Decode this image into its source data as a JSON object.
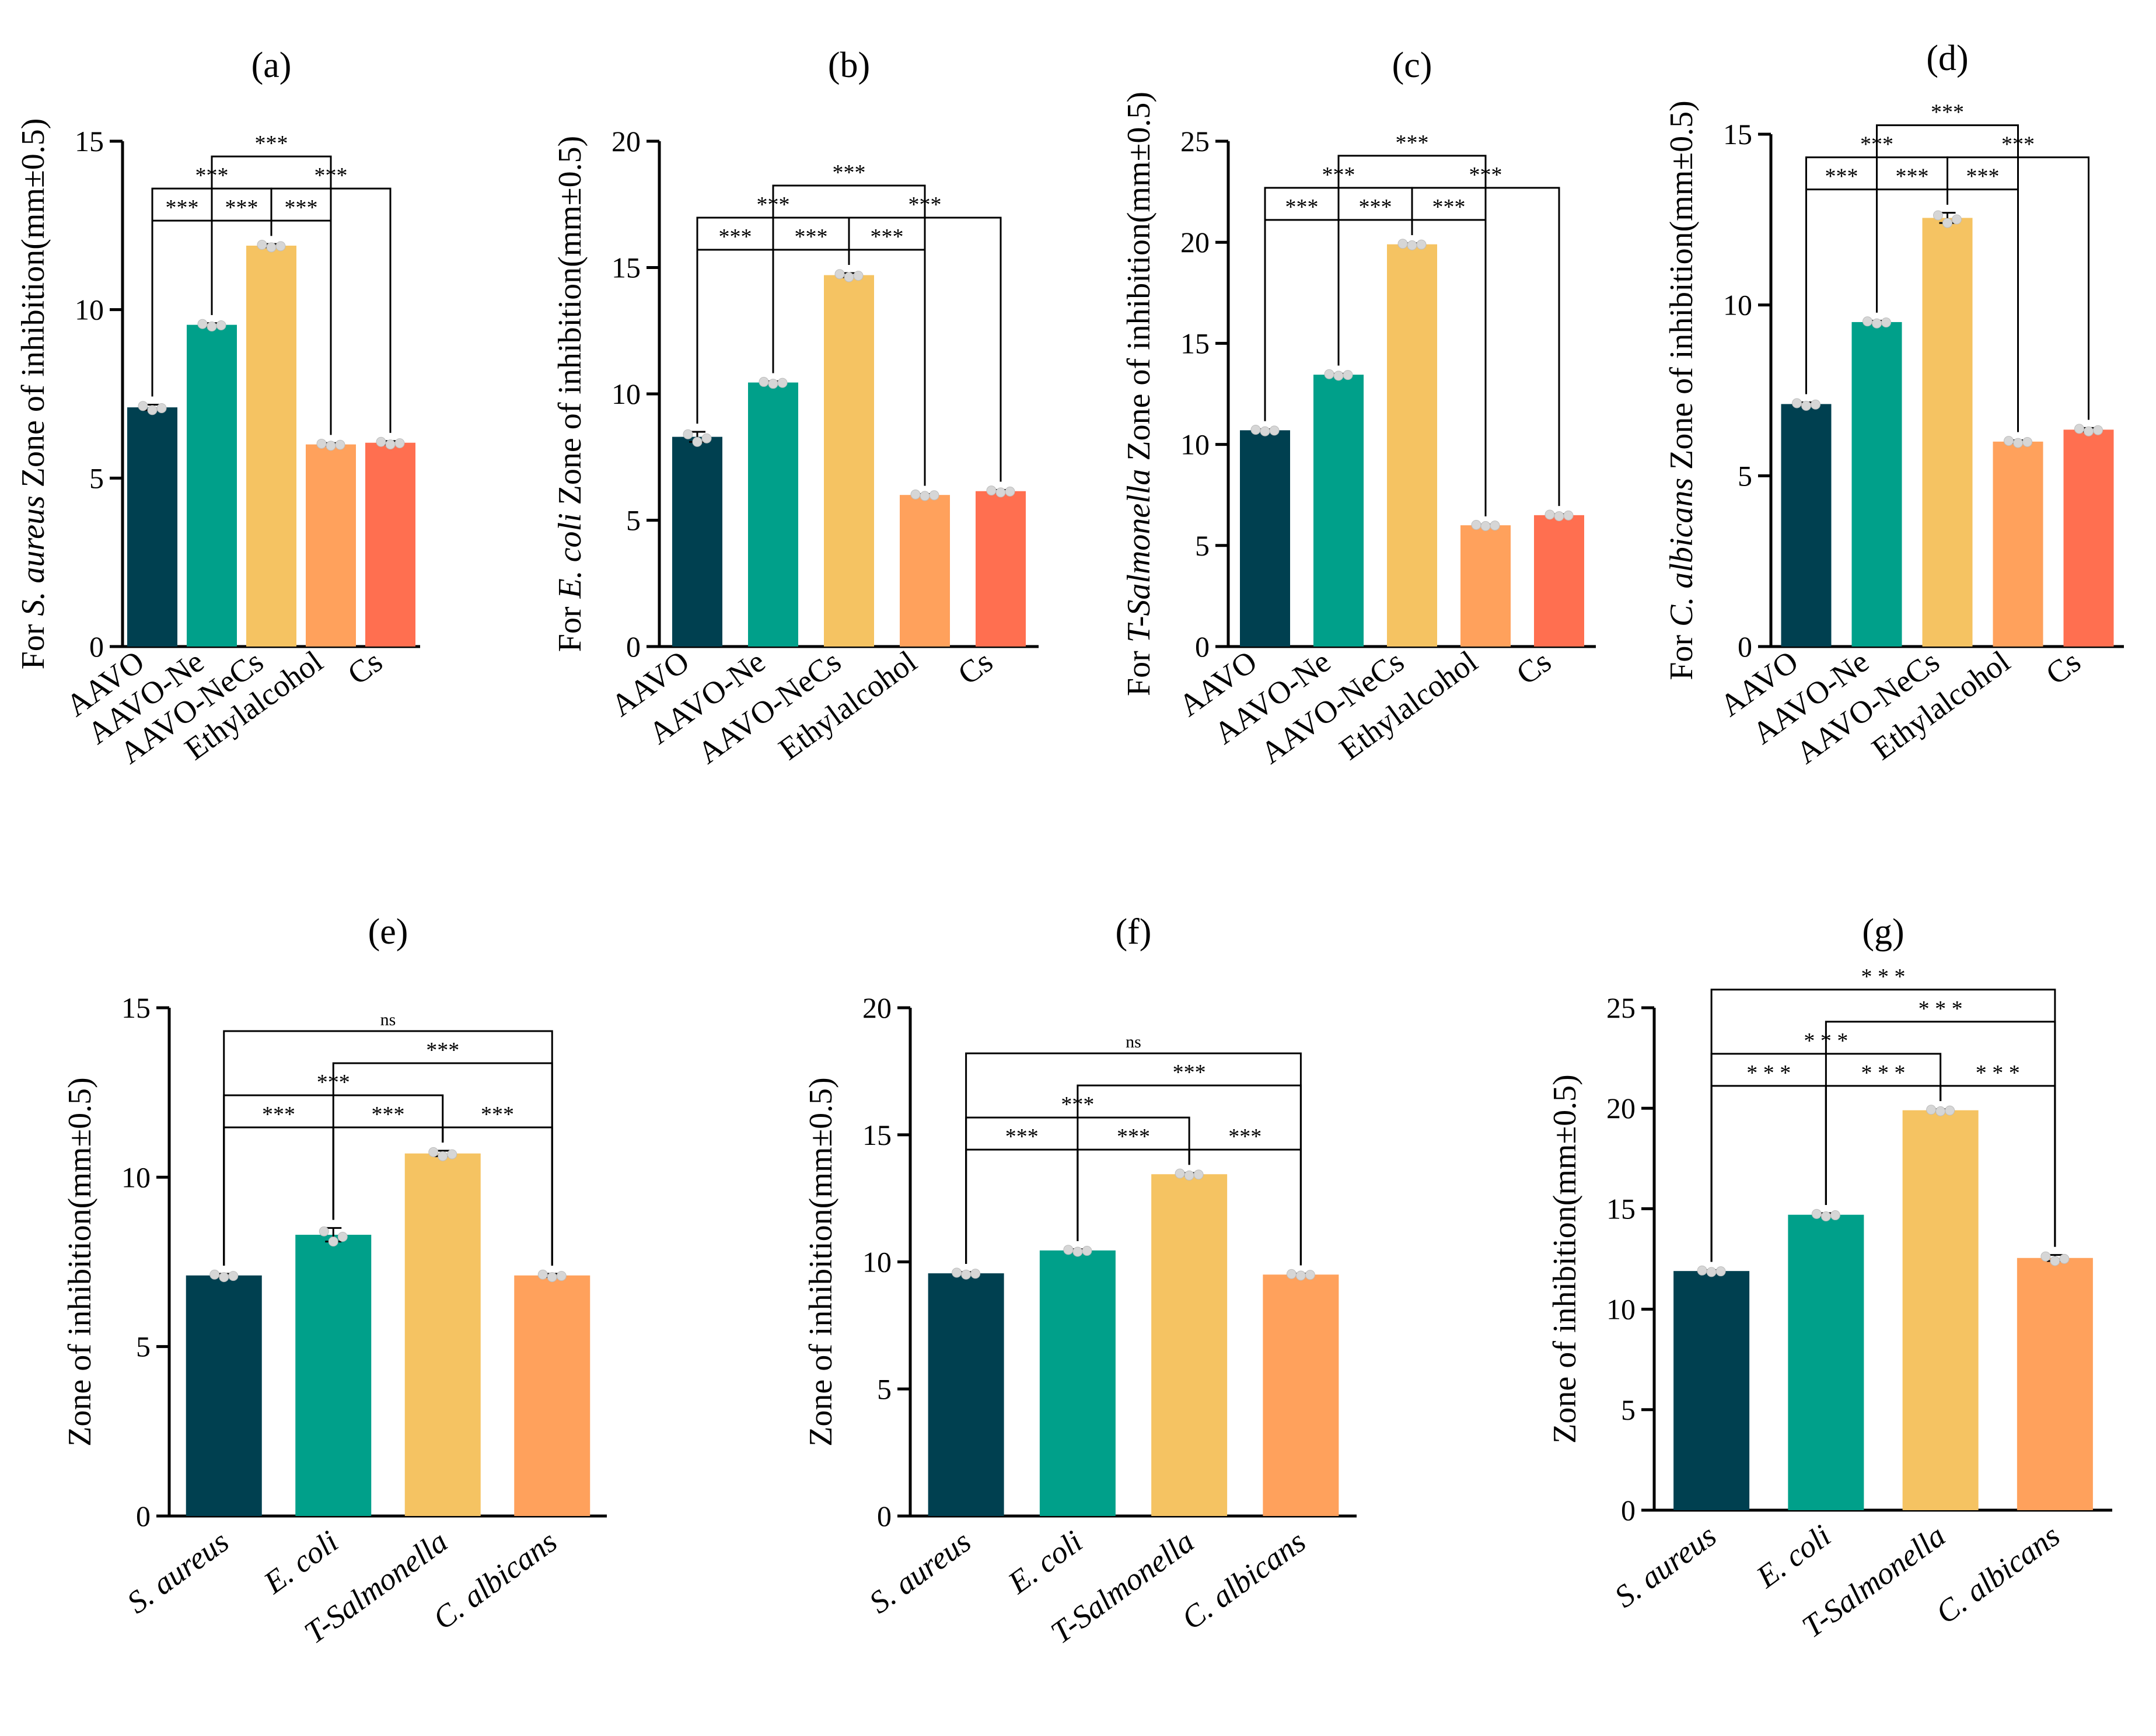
{
  "figure": {
    "background": "#ffffff"
  },
  "palette": {
    "c1": "#004050",
    "c2": "#00A08A",
    "c3": "#F5C362",
    "c4": "#FFA15C",
    "c5": "#FF6F50",
    "point": "#d6d6d6"
  },
  "chart_data": [
    {
      "type": "bar",
      "panel": "(a)",
      "title": "(a)",
      "ylabel_parts": [
        {
          "text": "For ",
          "italic": false
        },
        {
          "text": "S. aureus",
          "italic": true
        },
        {
          "text": " Zone of inhibition(mm±0.5)",
          "italic": false
        }
      ],
      "ylim": [
        0,
        15
      ],
      "yticks": [
        0,
        5,
        10,
        15
      ],
      "categories": [
        "AAVO",
        "AAVO-Ne",
        "AAVO-NeCs",
        "Ethylalcohol",
        "Cs"
      ],
      "category_italic": false,
      "values": [
        7.1,
        9.55,
        11.9,
        6.0,
        6.05
      ],
      "errors": [
        0.08,
        0.05,
        0.05,
        0.04,
        0.05
      ],
      "colors": [
        "#004050",
        "#00A08A",
        "#F5C362",
        "#FFA15C",
        "#FF6F50"
      ],
      "significance": [
        {
          "from": 0,
          "to": 1,
          "level": 1,
          "label": "***"
        },
        {
          "from": 1,
          "to": 2,
          "level": 1,
          "label": "***"
        },
        {
          "from": 2,
          "to": 3,
          "level": 1,
          "label": "***"
        },
        {
          "from": 0,
          "to": 2,
          "level": 2,
          "label": "***"
        },
        {
          "from": 2,
          "to": 4,
          "level": 2,
          "label": "***"
        },
        {
          "from": 1,
          "to": 3,
          "level": 3,
          "label": "***"
        }
      ]
    },
    {
      "type": "bar",
      "panel": "(b)",
      "title": "(b)",
      "ylabel_parts": [
        {
          "text": "For ",
          "italic": false
        },
        {
          "text": "E. coli",
          "italic": true
        },
        {
          "text": " Zone of inhibition(mm±0.5)",
          "italic": false
        }
      ],
      "ylim": [
        0,
        20
      ],
      "yticks": [
        0,
        5,
        10,
        15,
        20
      ],
      "categories": [
        "AAVO",
        "AAVO-Ne",
        "AAVO-NeCs",
        "Ethylalcohol",
        "Cs"
      ],
      "category_italic": false,
      "values": [
        8.3,
        10.45,
        14.7,
        6.0,
        6.15
      ],
      "errors": [
        0.2,
        0.05,
        0.08,
        0.04,
        0.05
      ],
      "colors": [
        "#004050",
        "#00A08A",
        "#F5C362",
        "#FFA15C",
        "#FF6F50"
      ],
      "significance": [
        {
          "from": 0,
          "to": 1,
          "level": 1,
          "label": "***"
        },
        {
          "from": 1,
          "to": 2,
          "level": 1,
          "label": "***"
        },
        {
          "from": 2,
          "to": 3,
          "level": 1,
          "label": "***"
        },
        {
          "from": 0,
          "to": 2,
          "level": 2,
          "label": "***"
        },
        {
          "from": 2,
          "to": 4,
          "level": 2,
          "label": "***"
        },
        {
          "from": 1,
          "to": 3,
          "level": 3,
          "label": "***"
        }
      ]
    },
    {
      "type": "bar",
      "panel": "(c)",
      "title": "(c)",
      "ylabel_parts": [
        {
          "text": "For ",
          "italic": false
        },
        {
          "text": "T-Salmonella",
          "italic": true
        },
        {
          "text": " Zone of inhibition(mm±0.5)",
          "italic": false
        }
      ],
      "ylim": [
        0,
        25
      ],
      "yticks": [
        0,
        5,
        10,
        15,
        20,
        25
      ],
      "categories": [
        "AAVO",
        "AAVO-Ne",
        "AAVO-NeCs",
        "Ethylalcohol",
        "Cs"
      ],
      "category_italic": false,
      "values": [
        10.7,
        13.45,
        19.9,
        6.0,
        6.5
      ],
      "errors": [
        0.05,
        0.05,
        0.05,
        0.04,
        0.05
      ],
      "colors": [
        "#004050",
        "#00A08A",
        "#F5C362",
        "#FFA15C",
        "#FF6F50"
      ],
      "significance": [
        {
          "from": 0,
          "to": 1,
          "level": 1,
          "label": "***"
        },
        {
          "from": 1,
          "to": 2,
          "level": 1,
          "label": "***"
        },
        {
          "from": 2,
          "to": 3,
          "level": 1,
          "label": "***"
        },
        {
          "from": 0,
          "to": 2,
          "level": 2,
          "label": "***"
        },
        {
          "from": 2,
          "to": 4,
          "level": 2,
          "label": "***"
        },
        {
          "from": 1,
          "to": 3,
          "level": 3,
          "label": "***"
        }
      ]
    },
    {
      "type": "bar",
      "panel": "(d)",
      "title": "(d)",
      "ylabel_parts": [
        {
          "text": "For ",
          "italic": false
        },
        {
          "text": "C. albicans",
          "italic": true
        },
        {
          "text": " Zone of inhibition(mm±0.5)",
          "italic": false
        }
      ],
      "ylim": [
        0,
        15
      ],
      "yticks": [
        0,
        5,
        10,
        15
      ],
      "categories": [
        "AAVO",
        "AAVO-Ne",
        "AAVO-NeCs",
        "Ethylalcohol",
        "Cs"
      ],
      "category_italic": false,
      "values": [
        7.1,
        9.5,
        12.55,
        6.0,
        6.35
      ],
      "errors": [
        0.05,
        0.04,
        0.15,
        0.04,
        0.05
      ],
      "colors": [
        "#004050",
        "#00A08A",
        "#F5C362",
        "#FFA15C",
        "#FF6F50"
      ],
      "significance": [
        {
          "from": 0,
          "to": 1,
          "level": 1,
          "label": "***"
        },
        {
          "from": 1,
          "to": 2,
          "level": 1,
          "label": "***"
        },
        {
          "from": 2,
          "to": 3,
          "level": 1,
          "label": "***"
        },
        {
          "from": 0,
          "to": 2,
          "level": 2,
          "label": "***"
        },
        {
          "from": 2,
          "to": 4,
          "level": 2,
          "label": "***"
        },
        {
          "from": 1,
          "to": 3,
          "level": 3,
          "label": "***"
        }
      ]
    },
    {
      "type": "bar",
      "panel": "(e)",
      "title": "(e)",
      "ylabel_parts": [
        {
          "text": "Zone of inhibition(mm±0.5)",
          "italic": false
        }
      ],
      "ylim": [
        0,
        15
      ],
      "yticks": [
        0,
        5,
        10,
        15
      ],
      "categories": [
        "S. aureus",
        "E. coli",
        "T-Salmonella",
        "C. albicans"
      ],
      "category_italic": true,
      "values": [
        7.1,
        8.3,
        10.7,
        7.1
      ],
      "errors": [
        0.05,
        0.2,
        0.08,
        0.05
      ],
      "colors": [
        "#004050",
        "#00A08A",
        "#F5C362",
        "#FFA15C"
      ],
      "significance": [
        {
          "from": 0,
          "to": 1,
          "level": 1,
          "label": "***"
        },
        {
          "from": 1,
          "to": 2,
          "level": 1,
          "label": "***"
        },
        {
          "from": 2,
          "to": 3,
          "level": 1,
          "label": "***"
        },
        {
          "from": 0,
          "to": 2,
          "level": 2,
          "label": "***"
        },
        {
          "from": 1,
          "to": 3,
          "level": 3,
          "label": "***"
        },
        {
          "from": 0,
          "to": 3,
          "level": 4,
          "label": "ns"
        }
      ]
    },
    {
      "type": "bar",
      "panel": "(f)",
      "title": "(f)",
      "ylabel_parts": [
        {
          "text": "Zone of inhibition(mm±0.5)",
          "italic": false
        }
      ],
      "ylim": [
        0,
        20
      ],
      "yticks": [
        0,
        5,
        10,
        15,
        20
      ],
      "categories": [
        "S. aureus",
        "E. coli",
        "T-Salmonella",
        "C. albicans"
      ],
      "category_italic": true,
      "values": [
        9.55,
        10.45,
        13.45,
        9.5
      ],
      "errors": [
        0.05,
        0.05,
        0.05,
        0.04
      ],
      "colors": [
        "#004050",
        "#00A08A",
        "#F5C362",
        "#FFA15C"
      ],
      "significance": [
        {
          "from": 0,
          "to": 1,
          "level": 1,
          "label": "***"
        },
        {
          "from": 1,
          "to": 2,
          "level": 1,
          "label": "***"
        },
        {
          "from": 2,
          "to": 3,
          "level": 1,
          "label": "***"
        },
        {
          "from": 0,
          "to": 2,
          "level": 2,
          "label": "***"
        },
        {
          "from": 1,
          "to": 3,
          "level": 3,
          "label": "***"
        },
        {
          "from": 0,
          "to": 3,
          "level": 4,
          "label": "ns"
        }
      ]
    },
    {
      "type": "bar",
      "panel": "(g)",
      "title": "(g)",
      "ylabel_parts": [
        {
          "text": "Zone of inhibition(mm±0.5)",
          "italic": false
        }
      ],
      "ylim": [
        0,
        25
      ],
      "yticks": [
        0,
        5,
        10,
        15,
        20,
        25
      ],
      "categories": [
        "S. aureus",
        "E. coli",
        "T-Salmonella",
        "C. albicans"
      ],
      "category_italic": true,
      "values": [
        11.9,
        14.7,
        19.9,
        12.55
      ],
      "errors": [
        0.05,
        0.08,
        0.05,
        0.15
      ],
      "colors": [
        "#004050",
        "#00A08A",
        "#F5C362",
        "#FFA15C"
      ],
      "significance": [
        {
          "from": 0,
          "to": 1,
          "level": 1,
          "label": "* * *"
        },
        {
          "from": 1,
          "to": 2,
          "level": 1,
          "label": "* * *"
        },
        {
          "from": 2,
          "to": 3,
          "level": 1,
          "label": "* * *"
        },
        {
          "from": 0,
          "to": 2,
          "level": 2,
          "label": "* * *"
        },
        {
          "from": 1,
          "to": 3,
          "level": 3,
          "label": "* * *"
        },
        {
          "from": 0,
          "to": 3,
          "level": 4,
          "label": "* * *"
        }
      ]
    }
  ]
}
